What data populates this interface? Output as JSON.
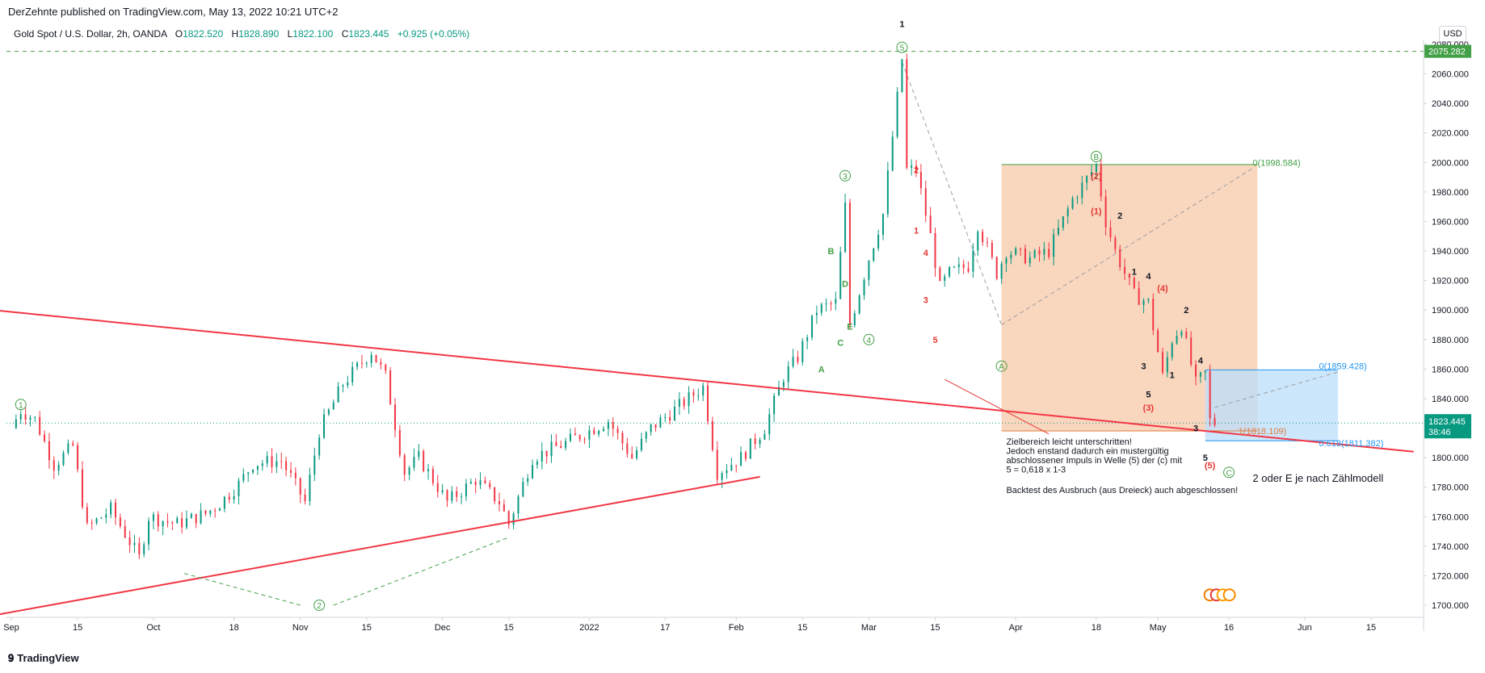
{
  "header": {
    "publisher": "DerZehnte published on TradingView.com, May 13, 2022 10:21 UTC+2",
    "symbol": "Gold Spot / U.S. Dollar, 2h, OANDA",
    "open_label": "O",
    "open": "1822.520",
    "high_label": "H",
    "high": "1828.890",
    "low_label": "L",
    "low": "1822.100",
    "close_label": "C",
    "close": "1823.445",
    "change": "+0.925 (+0.05%)",
    "currency_button": "USD"
  },
  "footer": {
    "logo_text": "TradingView",
    "logo_mark": "𝟗"
  },
  "colors": {
    "up": "#089981",
    "down": "#f23645",
    "trendline": "#f23645",
    "wave_green": "#43a047",
    "wave_red": "#e53935",
    "fib_blue": "#2196f3",
    "zone_orange": "#f7c8a8",
    "zone_blue": "#bbdefb",
    "price_tag": "#089981"
  },
  "chart_data": {
    "type": "candlestick",
    "title": "Gold Spot / U.S. Dollar, 2h, OANDA",
    "y_axis": {
      "ticks": [
        1700,
        1720,
        1740,
        1760,
        1780,
        1800,
        1820,
        1840,
        1860,
        1880,
        1900,
        1920,
        1940,
        1960,
        1980,
        2000,
        2020,
        2040,
        2060,
        2080
      ],
      "tick_labels": [
        "1700.000",
        "1720.000",
        "1740.000",
        "1760.000",
        "1780.000",
        "1800.000",
        "1820.000",
        "1840.000",
        "1860.000",
        "1880.000",
        "1900.000",
        "1920.000",
        "1940.000",
        "1960.000",
        "1980.000",
        "2000.000",
        "2020.000",
        "2040.000",
        "2060.000",
        "2080.000"
      ],
      "ylim": [
        1690,
        2088
      ]
    },
    "x_axis": {
      "labels": [
        "Sep",
        "15",
        "Oct",
        "18",
        "Nov",
        "15",
        "Dec",
        "15",
        "2022",
        "17",
        "Feb",
        "15",
        "Mar",
        "15",
        "Apr",
        "18",
        "May",
        "16",
        "Jun",
        "15"
      ],
      "dates": [
        "2021-09-01",
        "2021-09-15",
        "2021-10-01",
        "2021-10-18",
        "2021-11-01",
        "2021-11-15",
        "2021-12-01",
        "2021-12-15",
        "2022-01-01",
        "2022-01-17",
        "2022-02-01",
        "2022-02-15",
        "2022-03-01",
        "2022-03-15",
        "2022-04-01",
        "2022-04-18",
        "2022-05-01",
        "2022-05-16",
        "2022-06-01",
        "2022-06-15"
      ]
    },
    "price_path": [
      [
        "2021-09-01",
        1820
      ],
      [
        "2021-09-03",
        1832
      ],
      [
        "2021-09-06",
        1826
      ],
      [
        "2021-09-10",
        1795
      ],
      [
        "2021-09-14",
        1808
      ],
      [
        "2021-09-17",
        1752
      ],
      [
        "2021-09-22",
        1765
      ],
      [
        "2021-09-28",
        1732
      ],
      [
        "2021-09-30",
        1760
      ],
      [
        "2021-10-06",
        1755
      ],
      [
        "2021-10-12",
        1762
      ],
      [
        "2021-10-15",
        1769
      ],
      [
        "2021-10-19",
        1782
      ],
      [
        "2021-10-22",
        1796
      ],
      [
        "2021-10-28",
        1798
      ],
      [
        "2021-11-02",
        1770
      ],
      [
        "2021-11-05",
        1818
      ],
      [
        "2021-11-10",
        1850
      ],
      [
        "2021-11-16",
        1872
      ],
      [
        "2021-11-19",
        1855
      ],
      [
        "2021-11-23",
        1790
      ],
      [
        "2021-11-26",
        1800
      ],
      [
        "2021-12-02",
        1770
      ],
      [
        "2021-12-08",
        1785
      ],
      [
        "2021-12-13",
        1770
      ],
      [
        "2021-12-15",
        1755
      ],
      [
        "2021-12-20",
        1800
      ],
      [
        "2021-12-27",
        1810
      ],
      [
        "2022-01-05",
        1825
      ],
      [
        "2022-01-10",
        1800
      ],
      [
        "2022-01-14",
        1820
      ],
      [
        "2022-01-20",
        1835
      ],
      [
        "2022-01-25",
        1848
      ],
      [
        "2022-01-28",
        1790
      ],
      [
        "2022-02-02",
        1800
      ],
      [
        "2022-02-07",
        1820
      ],
      [
        "2022-02-11",
        1855
      ],
      [
        "2022-02-14",
        1868
      ],
      [
        "2022-02-18",
        1900
      ],
      [
        "2022-02-22",
        1905
      ],
      [
        "2022-02-24",
        1970
      ],
      [
        "2022-02-25",
        1890
      ],
      [
        "2022-03-01",
        1935
      ],
      [
        "2022-03-04",
        1965
      ],
      [
        "2022-03-08",
        2070
      ],
      [
        "2022-03-09",
        1995
      ],
      [
        "2022-03-11",
        1995
      ],
      [
        "2022-03-14",
        1950
      ],
      [
        "2022-03-16",
        1915
      ],
      [
        "2022-03-18",
        1925
      ],
      [
        "2022-03-22",
        1930
      ],
      [
        "2022-03-24",
        1958
      ],
      [
        "2022-03-28",
        1925
      ],
      [
        "2022-03-30",
        1940
      ],
      [
        "2022-04-04",
        1935
      ],
      [
        "2022-04-08",
        1940
      ],
      [
        "2022-04-13",
        1975
      ],
      [
        "2022-04-18",
        1998
      ],
      [
        "2022-04-20",
        1960
      ],
      [
        "2022-04-22",
        1940
      ],
      [
        "2022-04-26",
        1910
      ],
      [
        "2022-04-29",
        1905
      ],
      [
        "2022-05-02",
        1855
      ],
      [
        "2022-05-04",
        1880
      ],
      [
        "2022-05-06",
        1890
      ],
      [
        "2022-05-09",
        1850
      ],
      [
        "2022-05-11",
        1857
      ],
      [
        "2022-05-12",
        1825
      ],
      [
        "2022-05-13",
        1823.445
      ]
    ],
    "last_price": "1823.445",
    "last_price_countdown": "38:46",
    "ath_level": 2075.282,
    "ath_label": "2075.282",
    "trendlines": [
      {
        "name": "upper-triangle-line",
        "from": [
          "2021-08-28",
          1900
        ],
        "to": [
          "2022-06-24",
          1804
        ]
      },
      {
        "name": "lower-triangle-line",
        "from": [
          "2021-08-28",
          1693
        ],
        "to": [
          "2022-02-06",
          1787
        ]
      }
    ],
    "zones": [
      {
        "name": "orange-target-zone",
        "from": [
          "2022-03-29",
          1818.109
        ],
        "to": [
          "2022-05-22",
          1998.584
        ]
      },
      {
        "name": "blue-fib-zone",
        "from": [
          "2022-05-11",
          1811.382
        ],
        "to": [
          "2022-06-08",
          1859.428
        ]
      }
    ],
    "fib_labels": [
      {
        "text": "0(1998.584)",
        "date": "2022-05-21",
        "y": 2000,
        "color": "green"
      },
      {
        "text": "1(1818.109)",
        "date": "2022-05-18",
        "y": 1818.109,
        "color": "orange"
      },
      {
        "text": "0(1859.428)",
        "date": "2022-06-04",
        "y": 1862,
        "color": "blue"
      },
      {
        "text": "0.618(1811.382)",
        "date": "2022-06-04",
        "y": 1810,
        "color": "blue"
      }
    ],
    "wave_labels": [
      {
        "text": "1",
        "date": "2021-09-03",
        "y": 1836,
        "color": "green",
        "circle": true
      },
      {
        "text": "2",
        "date": "2021-11-05",
        "y": 1700,
        "color": "green",
        "circle": true
      },
      {
        "text": "3",
        "date": "2022-02-24",
        "y": 1991,
        "color": "green",
        "circle": true
      },
      {
        "text": "4",
        "date": "2022-03-01",
        "y": 1880,
        "color": "green",
        "circle": true
      },
      {
        "text": "5",
        "date": "2022-03-08",
        "y": 2078,
        "color": "green",
        "circle": true
      },
      {
        "text": "1",
        "date": "2022-03-08",
        "y": 2094,
        "color": "black",
        "circle": false
      },
      {
        "text": "A",
        "date": "2022-03-29",
        "y": 1862,
        "color": "green",
        "circle": true
      },
      {
        "text": "B",
        "date": "2022-04-18",
        "y": 2004,
        "color": "green",
        "circle": true
      },
      {
        "text": "C",
        "date": "2022-05-16",
        "y": 1790,
        "color": "green",
        "circle": true
      },
      {
        "text": "A",
        "date": "2022-02-19",
        "y": 1860,
        "color": "green",
        "circle": false
      },
      {
        "text": "B",
        "date": "2022-02-21",
        "y": 1940,
        "color": "green",
        "circle": false
      },
      {
        "text": "C",
        "date": "2022-02-23",
        "y": 1878,
        "color": "green",
        "circle": false
      },
      {
        "text": "D",
        "date": "2022-02-24",
        "y": 1918,
        "color": "green",
        "circle": false
      },
      {
        "text": "E",
        "date": "2022-02-25",
        "y": 1889,
        "color": "green",
        "circle": false
      },
      {
        "text": "2",
        "date": "2022-03-11",
        "y": 1995,
        "color": "red",
        "circle": false
      },
      {
        "text": "1",
        "date": "2022-03-11",
        "y": 1954,
        "color": "red",
        "circle": false
      },
      {
        "text": "4",
        "date": "2022-03-13",
        "y": 1939,
        "color": "red",
        "circle": false
      },
      {
        "text": "3",
        "date": "2022-03-13",
        "y": 1907,
        "color": "red",
        "circle": false
      },
      {
        "text": "5",
        "date": "2022-03-15",
        "y": 1880,
        "color": "red",
        "circle": false
      },
      {
        "text": "(2)",
        "date": "2022-04-18",
        "y": 1991,
        "color": "red",
        "circle": false
      },
      {
        "text": "(1)",
        "date": "2022-04-18",
        "y": 1967,
        "color": "red",
        "circle": false
      },
      {
        "text": "2",
        "date": "2022-04-23",
        "y": 1964,
        "color": "black",
        "circle": false
      },
      {
        "text": "1",
        "date": "2022-04-26",
        "y": 1926,
        "color": "black",
        "circle": false
      },
      {
        "text": "4",
        "date": "2022-04-29",
        "y": 1923,
        "color": "black",
        "circle": false
      },
      {
        "text": "(4)",
        "date": "2022-05-02",
        "y": 1915,
        "color": "red",
        "circle": false
      },
      {
        "text": "2",
        "date": "2022-05-07",
        "y": 1900,
        "color": "black",
        "circle": false
      },
      {
        "text": "3",
        "date": "2022-04-28",
        "y": 1862,
        "color": "black",
        "circle": false
      },
      {
        "text": "5",
        "date": "2022-04-29",
        "y": 1843,
        "color": "black",
        "circle": false
      },
      {
        "text": "1",
        "date": "2022-05-04",
        "y": 1856,
        "color": "black",
        "circle": false
      },
      {
        "text": "(3)",
        "date": "2022-04-29",
        "y": 1834,
        "color": "red",
        "circle": false
      },
      {
        "text": "4",
        "date": "2022-05-10",
        "y": 1866,
        "color": "black",
        "circle": false
      },
      {
        "text": "3",
        "date": "2022-05-09",
        "y": 1820,
        "color": "black",
        "circle": false
      },
      {
        "text": "5",
        "date": "2022-05-11",
        "y": 1800,
        "color": "black",
        "circle": false
      },
      {
        "text": "(5)",
        "date": "2022-05-12",
        "y": 1795,
        "color": "red",
        "circle": false
      }
    ],
    "annotations": {
      "note_lines": [
        "Zielbereich leicht unterschritten!",
        "Jedoch enstand dadurch ein mustergültig",
        "abschlossener Impuls in Welle (5) der (c) mit",
        "5 = 0,618 x 1-3"
      ],
      "note_backtest": "Backtest des Ausbruch (aus Dreieck) auch abgeschlossen!",
      "count_label": "2 oder E je nach Zählmodell"
    }
  }
}
